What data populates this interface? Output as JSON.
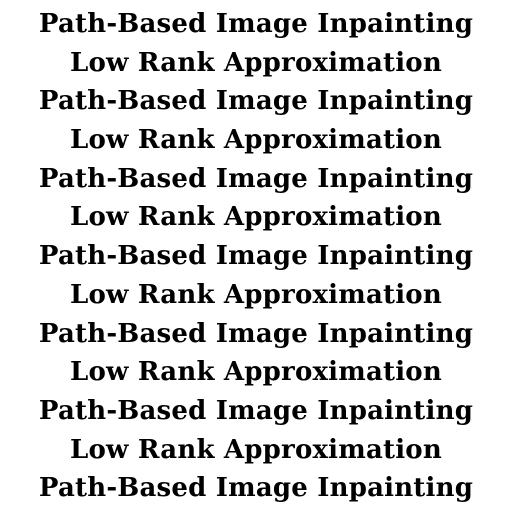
{
  "lines": [
    "Path-Based Image Inpainting",
    "Low Rank Approximation",
    "Path-Based Image Inpainting",
    "Low Rank Approximation",
    "Path-Based Image Inpainting",
    "Low Rank Approximation",
    "Path-Based Image Inpainting",
    "Low Rank Approximation",
    "Path-Based Image Inpainting",
    "Low Rank Approximation",
    "Path-Based Image Inpainting",
    "Low Rank Approximation",
    "Path-Based Image Inpainting"
  ],
  "colors": {
    "background": "#ffffff",
    "text": "#000000"
  }
}
